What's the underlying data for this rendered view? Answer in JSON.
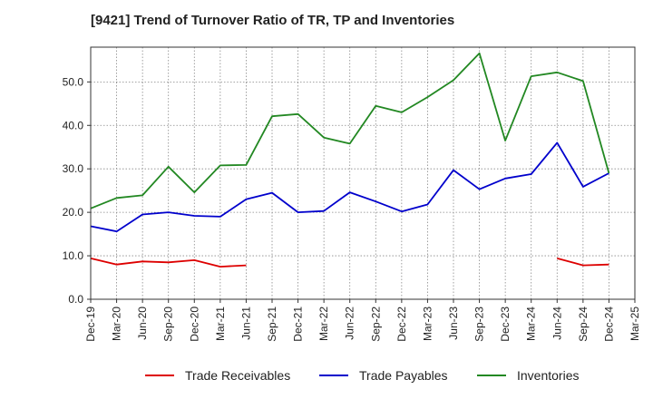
{
  "chart_data": {
    "type": "line",
    "title": "[9421]  Trend of Turnover Ratio of TR, TP and Inventories",
    "xlabel": "",
    "ylabel": "",
    "ylim": [
      0,
      58
    ],
    "y_ticks": [
      "0.0",
      "10.0",
      "20.0",
      "30.0",
      "40.0",
      "50.0"
    ],
    "x_tick_labels": [
      "Dec-19",
      "Mar-20",
      "Jun-20",
      "Sep-20",
      "Dec-20",
      "Mar-21",
      "Jun-21",
      "Sep-21",
      "Dec-21",
      "Mar-22",
      "Jun-22",
      "Sep-22",
      "Dec-22",
      "Mar-23",
      "Jun-23",
      "Sep-23",
      "Dec-23",
      "Mar-24",
      "Jun-24",
      "Sep-24",
      "Dec-24",
      "Mar-25"
    ],
    "grid": true,
    "legend_position": "bottom",
    "series": [
      {
        "name": "Trade Receivables",
        "color": "#dd0000",
        "values": [
          9.4,
          8.0,
          8.7,
          8.5,
          9.0,
          7.5,
          7.8,
          null,
          null,
          null,
          null,
          null,
          null,
          null,
          null,
          null,
          null,
          null,
          9.4,
          7.8,
          8.0,
          null
        ]
      },
      {
        "name": "Trade Payables",
        "color": "#0000cc",
        "values": [
          16.8,
          15.6,
          19.5,
          20.0,
          19.2,
          19.0,
          23.0,
          24.5,
          20.0,
          20.3,
          24.6,
          22.5,
          20.2,
          21.8,
          29.7,
          25.3,
          27.8,
          28.8,
          36.0,
          25.9,
          29.0,
          null
        ]
      },
      {
        "name": "Inventories",
        "color": "#228822",
        "values": [
          20.9,
          23.3,
          23.9,
          30.5,
          24.6,
          30.8,
          30.9,
          42.1,
          42.6,
          37.2,
          35.8,
          44.5,
          43.0,
          46.5,
          50.4,
          56.6,
          36.5,
          51.3,
          52.2,
          50.2,
          29.0,
          null
        ]
      }
    ]
  }
}
